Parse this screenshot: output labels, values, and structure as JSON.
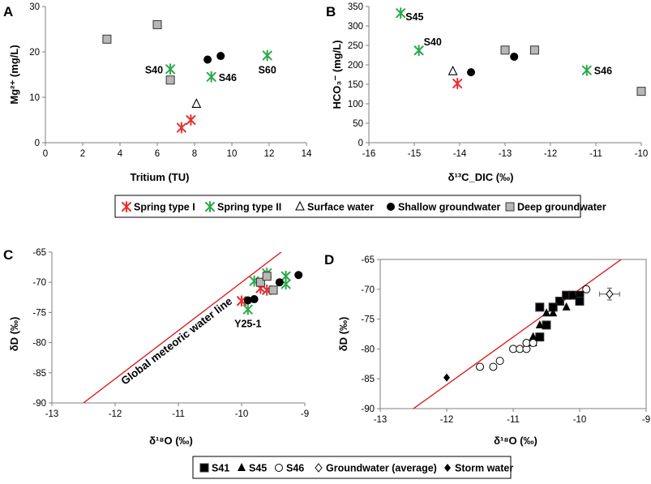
{
  "colors": {
    "type1": "#e53030",
    "type2": "#2aa84a",
    "black": "#000000",
    "gray": "#b7b7b7",
    "line": "#e01010"
  },
  "chart_data": [
    {
      "id": "A",
      "panel_label": "A",
      "type": "scatter",
      "xlabel": "Tritium (TU)",
      "ylabel": "Mg²⁺ (mg/L)",
      "xlim": [
        0,
        14
      ],
      "ylim": [
        0,
        30
      ],
      "xticks": [
        0,
        2,
        4,
        6,
        8,
        10,
        12,
        14
      ],
      "yticks": [
        0,
        10,
        20,
        30
      ],
      "xtick_labels": [
        "0",
        "2",
        "4",
        "6",
        "8",
        "10",
        "12",
        "14"
      ],
      "ytick_labels": [
        "0",
        "10",
        "20",
        "30"
      ],
      "series": [
        {
          "name": "Spring type I",
          "marker": "xstar",
          "color": "type1",
          "points": [
            [
              7.3,
              3.3
            ],
            [
              7.8,
              5.0
            ]
          ]
        },
        {
          "name": "Spring type II",
          "marker": "xstar",
          "color": "type2",
          "points": [
            [
              6.7,
              16.2
            ],
            [
              8.9,
              14.5
            ],
            [
              11.9,
              19.2
            ]
          ]
        },
        {
          "name": "Surface water",
          "marker": "triangle-open",
          "color": "black",
          "points": [
            [
              8.1,
              8.5
            ]
          ]
        },
        {
          "name": "Shallow groundwater",
          "marker": "circle",
          "color": "black",
          "points": [
            [
              8.7,
              18.3
            ],
            [
              9.4,
              19.1
            ]
          ]
        },
        {
          "name": "Deep groundwater",
          "marker": "square",
          "color": "gray",
          "points": [
            [
              3.3,
              22.8
            ],
            [
              6.0,
              26.0
            ],
            [
              6.7,
              13.8
            ]
          ]
        }
      ],
      "annotations": [
        {
          "text": "S40",
          "x": 6.7,
          "y": 16.2,
          "pos": "left"
        },
        {
          "text": "S46",
          "x": 8.9,
          "y": 14.5,
          "pos": "right"
        },
        {
          "text": "S60",
          "x": 11.9,
          "y": 19.2,
          "pos": "below"
        }
      ]
    },
    {
      "id": "B",
      "panel_label": "B",
      "type": "scatter",
      "xlabel": "δ¹³C_DIC (‰)",
      "ylabel": "HCO₃⁻ (mg/L)",
      "xlim": [
        -16,
        -10
      ],
      "ylim": [
        0,
        350
      ],
      "xticks": [
        -16,
        -15,
        -14,
        -13,
        -12,
        -11,
        -10
      ],
      "yticks": [
        0,
        50,
        100,
        150,
        200,
        250,
        300,
        350
      ],
      "xtick_labels": [
        "-16",
        "-15",
        "-14",
        "-13",
        "-12",
        "-11",
        "-10"
      ],
      "ytick_labels": [
        "0",
        "50",
        "100",
        "150",
        "200",
        "250",
        "300",
        "350"
      ],
      "series": [
        {
          "name": "Spring type I",
          "marker": "xstar",
          "color": "type1",
          "points": [
            [
              -14.05,
              152
            ]
          ]
        },
        {
          "name": "Spring type II",
          "marker": "xstar",
          "color": "type2",
          "points": [
            [
              -15.3,
              333
            ],
            [
              -14.9,
              237
            ],
            [
              -11.2,
              186
            ]
          ]
        },
        {
          "name": "Surface water",
          "marker": "triangle-open",
          "color": "black",
          "points": [
            [
              -14.15,
              183
            ]
          ]
        },
        {
          "name": "Shallow groundwater",
          "marker": "circle",
          "color": "black",
          "points": [
            [
              -13.75,
              181
            ],
            [
              -12.8,
              221
            ]
          ]
        },
        {
          "name": "Deep groundwater",
          "marker": "square",
          "color": "gray",
          "points": [
            [
              -13.0,
              238
            ],
            [
              -12.35,
              238
            ],
            [
              -10.0,
              132
            ]
          ]
        }
      ],
      "annotations": [
        {
          "text": "S45",
          "x": -15.3,
          "y": 333,
          "pos": "right-low"
        },
        {
          "text": "S40",
          "x": -14.9,
          "y": 237,
          "pos": "right-high"
        },
        {
          "text": "S46",
          "x": -11.2,
          "y": 186,
          "pos": "right"
        }
      ]
    },
    {
      "id": "C",
      "panel_label": "C",
      "type": "scatter",
      "xlabel": "δ¹⁸O (‰)",
      "ylabel": "δD (‰)",
      "xlim": [
        -13,
        -9
      ],
      "ylim": [
        -90,
        -65
      ],
      "xticks": [
        -13,
        -12,
        -11,
        -10,
        -9
      ],
      "yticks": [
        -90,
        -85,
        -80,
        -75,
        -70,
        -65
      ],
      "xtick_labels": [
        "-13",
        "-12",
        "-11",
        "-10",
        "-9"
      ],
      "ytick_labels": [
        "-90",
        "-85",
        "-80",
        "-75",
        "-70",
        "-65"
      ],
      "line": {
        "name": "Global meteoric water line",
        "slope": 8,
        "intercept": 10
      },
      "line_label": "Global meteoric water line",
      "series": [
        {
          "name": "Spring type I",
          "marker": "xstar",
          "color": "type1",
          "points": [
            [
              -10.0,
              -73.1
            ],
            [
              -9.7,
              -71.0
            ],
            [
              -9.6,
              -71.3
            ]
          ]
        },
        {
          "name": "Spring type II",
          "marker": "xstar",
          "color": "type2",
          "points": [
            [
              -9.9,
              -74.5
            ],
            [
              -9.8,
              -69.8
            ],
            [
              -9.6,
              -68.5
            ],
            [
              -9.3,
              -69.0
            ],
            [
              -9.3,
              -70.3
            ]
          ]
        },
        {
          "name": "Shallow groundwater",
          "marker": "circle",
          "color": "black",
          "points": [
            [
              -9.9,
              -73.0
            ],
            [
              -9.8,
              -72.8
            ],
            [
              -9.4,
              -70.0
            ],
            [
              -9.1,
              -68.8
            ]
          ]
        },
        {
          "name": "Deep groundwater",
          "marker": "square",
          "color": "gray",
          "points": [
            [
              -9.7,
              -70.0
            ],
            [
              -9.6,
              -69.0
            ],
            [
              -9.5,
              -71.3
            ]
          ]
        }
      ],
      "annotations": [
        {
          "text": "Y25-1",
          "x": -9.9,
          "y": -74.5,
          "pos": "below"
        }
      ]
    },
    {
      "id": "D",
      "panel_label": "D",
      "type": "scatter",
      "xlabel": "δ¹⁸O (‰)",
      "ylabel": "δD (‰)",
      "xlim": [
        -13,
        -9
      ],
      "ylim": [
        -90,
        -65
      ],
      "xticks": [
        -13,
        -12,
        -11,
        -10,
        -9
      ],
      "yticks": [
        -90,
        -85,
        -80,
        -75,
        -70,
        -65
      ],
      "xtick_labels": [
        "-13",
        "-12",
        "-11",
        "-10",
        "-9"
      ],
      "ytick_labels": [
        "-90",
        "-85",
        "-80",
        "-75",
        "-70",
        "-65"
      ],
      "line": {
        "name": "Global meteoric water line",
        "slope": 8,
        "intercept": 10
      },
      "series": [
        {
          "name": "S41",
          "marker": "square",
          "color": "black",
          "points": [
            [
              -10.6,
              -73
            ],
            [
              -10.6,
              -78
            ],
            [
              -10.5,
              -76
            ],
            [
              -10.3,
              -72
            ],
            [
              -10.2,
              -71
            ],
            [
              -10.1,
              -71
            ],
            [
              -10.0,
              -71
            ],
            [
              -10.0,
              -72
            ],
            [
              -10.4,
              -73
            ]
          ]
        },
        {
          "name": "S45",
          "marker": "triangle",
          "color": "black",
          "points": [
            [
              -10.7,
              -79
            ],
            [
              -10.7,
              -78
            ],
            [
              -10.6,
              -76
            ],
            [
              -10.5,
              -74
            ],
            [
              -10.4,
              -74
            ],
            [
              -10.2,
              -73
            ],
            [
              -10.1,
              -71
            ]
          ]
        },
        {
          "name": "S46",
          "marker": "circle-open",
          "color": "black",
          "points": [
            [
              -11.5,
              -83
            ],
            [
              -11.3,
              -83
            ],
            [
              -11.2,
              -82
            ],
            [
              -11.0,
              -80
            ],
            [
              -10.9,
              -80
            ],
            [
              -10.8,
              -80
            ],
            [
              -10.8,
              -79
            ],
            [
              -10.7,
              -79
            ],
            [
              -9.9,
              -70
            ]
          ]
        },
        {
          "name": "Groundwater (average)",
          "marker": "diamond-open",
          "color": "black",
          "points": [
            [
              -9.55,
              -70.8
            ]
          ],
          "error_x": 0.15,
          "error_y": 1.0
        },
        {
          "name": "Storm water",
          "marker": "diamond",
          "color": "black",
          "points": [
            [
              -12.0,
              -84.8
            ]
          ]
        }
      ]
    }
  ],
  "legend_top": [
    "Spring type I",
    "Spring type II",
    "Surface water",
    "Shallow groundwater",
    "Deep groundwater"
  ],
  "legend_bottom": [
    "S41",
    "S45",
    "S46",
    "Groundwater (average)",
    "Storm water"
  ]
}
